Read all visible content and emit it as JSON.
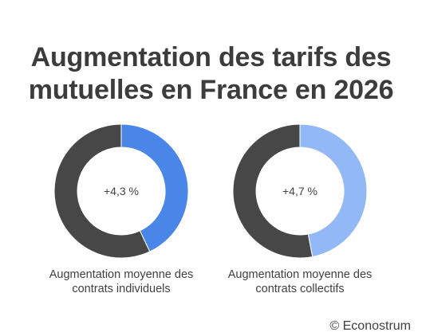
{
  "chart_data": [
    {
      "type": "pie",
      "values": [
        4.3
      ],
      "value_label": "+4,3 %",
      "label_lines": [
        "Augmentation moyenne des",
        "contrats individuels"
      ],
      "colors": {
        "value": "#4a86e8",
        "rest": "#474747"
      }
    },
    {
      "type": "pie",
      "values": [
        4.7
      ],
      "value_label": "+4,7 %",
      "label_lines": [
        "Augmentation moyenne des",
        "contrats collectifs"
      ],
      "colors": {
        "value": "#93b8f6",
        "rest": "#474747"
      }
    }
  ],
  "header": {
    "title_lines": [
      "Augmentation des tarifs des",
      "mutuelles en France en 2026"
    ]
  },
  "footer": {
    "credit": "© Econostrum"
  }
}
